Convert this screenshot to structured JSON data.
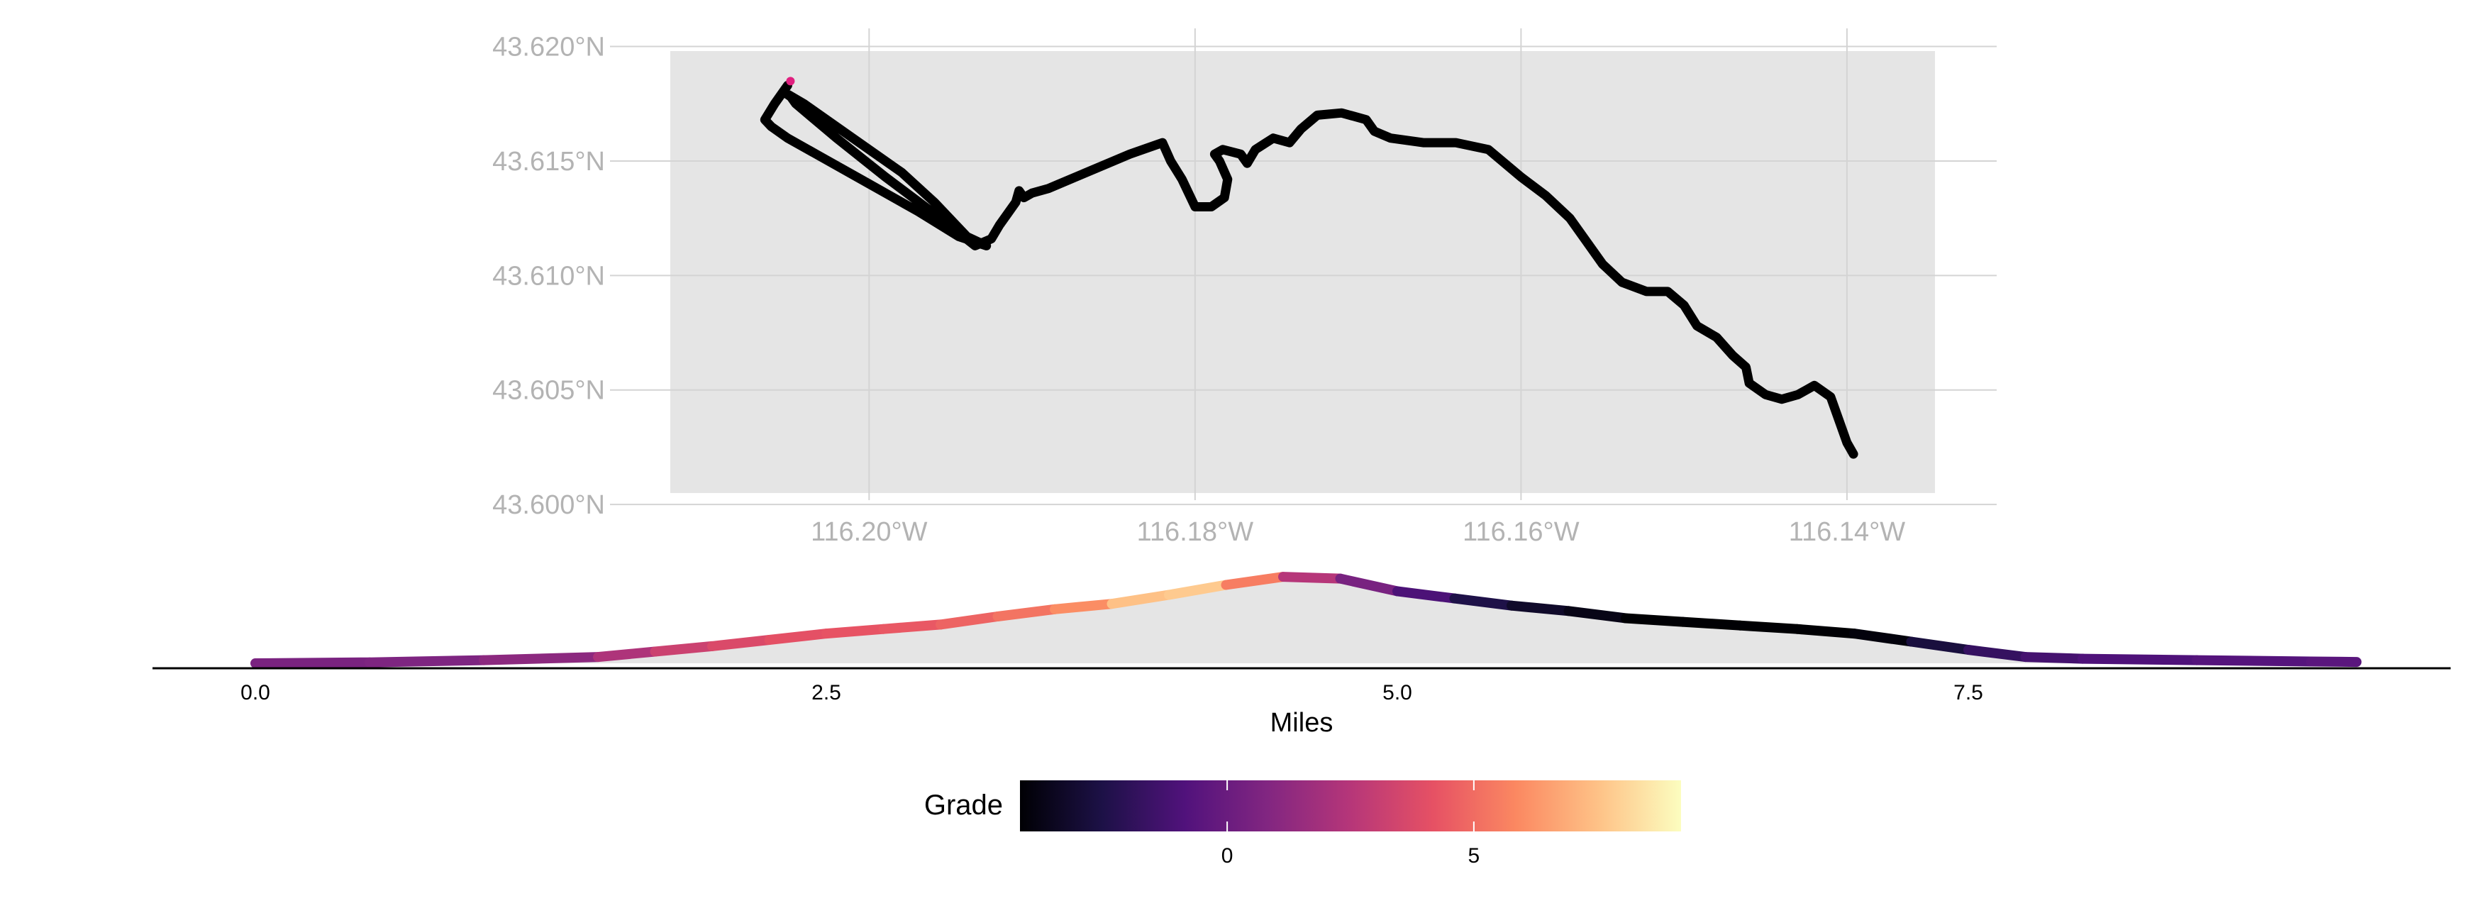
{
  "chart_data": [
    {
      "type": "line",
      "title": "",
      "xlabel": "",
      "ylabel": "",
      "x_ticks": [
        "116.20°W",
        "116.18°W",
        "116.16°W",
        "116.14°W"
      ],
      "x_tick_values": [
        -116.2,
        -116.18,
        -116.16,
        -116.14
      ],
      "y_ticks": [
        "43.600°N",
        "43.605°N",
        "43.610°N",
        "43.615°N",
        "43.620°N"
      ],
      "y_tick_values": [
        43.6,
        43.605,
        43.61,
        43.615,
        43.62
      ],
      "xlim": [
        -116.2122,
        -116.1346
      ],
      "ylim": [
        43.6005,
        43.6198
      ],
      "grid": true,
      "series": [
        {
          "x": [
            -116.205,
            -116.2058,
            -116.2064,
            -116.206,
            -116.205,
            -116.203,
            -116.2,
            -116.197,
            -116.1945,
            -116.1928,
            -116.194,
            -116.196,
            -116.198,
            -116.201,
            -116.204,
            -116.2052,
            -116.2048,
            -116.2045,
            -116.204,
            -116.202,
            -116.199,
            -116.196,
            -116.1935,
            -116.1925,
            -116.192,
            -116.1915,
            -116.191,
            -116.1908,
            -116.1905,
            -116.19,
            -116.189,
            -116.186,
            -116.184,
            -116.182,
            -116.1815,
            -116.1808,
            -116.18,
            -116.179,
            -116.1782,
            -116.178,
            -116.1785,
            -116.1788,
            -116.1783,
            -116.1772,
            -116.1768,
            -116.1763,
            -116.1752,
            -116.1742,
            -116.1735,
            -116.1725,
            -116.171,
            -116.1695,
            -116.169,
            -116.168,
            -116.166,
            -116.164,
            -116.162,
            -116.16,
            -116.1585,
            -116.157,
            -116.156,
            -116.155,
            -116.1538,
            -116.1523,
            -116.151,
            -116.15,
            -116.1492,
            -116.148,
            -116.147,
            -116.1462,
            -116.146,
            -116.145,
            -116.144,
            -116.143,
            -116.142,
            -116.141,
            -116.1405,
            -116.14,
            -116.1396
          ],
          "y": [
            43.6183,
            43.6175,
            43.6168,
            43.6165,
            43.616,
            43.6152,
            43.614,
            43.6128,
            43.6117,
            43.6113,
            43.6117,
            43.6132,
            43.6145,
            43.616,
            43.6175,
            43.618,
            43.6178,
            43.6175,
            43.6172,
            43.616,
            43.6143,
            43.6127,
            43.6113,
            43.6116,
            43.6122,
            43.6127,
            43.6132,
            43.6137,
            43.6134,
            43.6136,
            43.6138,
            43.6147,
            43.6153,
            43.6158,
            43.615,
            43.6142,
            43.613,
            43.613,
            43.6134,
            43.6142,
            43.615,
            43.6153,
            43.6155,
            43.6153,
            43.6149,
            43.6155,
            43.616,
            43.6158,
            43.6164,
            43.617,
            43.6171,
            43.6168,
            43.6163,
            43.616,
            43.6158,
            43.6158,
            43.6155,
            43.6143,
            43.6135,
            43.6125,
            43.6115,
            43.6105,
            43.6097,
            43.6093,
            43.6093,
            43.6087,
            43.6078,
            43.6073,
            43.6065,
            43.606,
            43.6053,
            43.6048,
            43.6046,
            43.6048,
            43.6052,
            43.6047,
            43.6037,
            43.6027,
            43.6022
          ]
        }
      ],
      "start_marker_color": "#e0207f"
    },
    {
      "type": "area",
      "title": "",
      "xlabel": "Miles",
      "ylabel": "",
      "x_ticks": [
        "0.0",
        "2.5",
        "5.0",
        "7.5"
      ],
      "x_tick_values": [
        0.0,
        2.5,
        5.0,
        7.5
      ],
      "xlim": [
        -0.45,
        9.6
      ],
      "ylim": [
        0,
        1
      ],
      "grid": false,
      "series": [
        {
          "x": [
            0.0,
            0.5,
            1.0,
            1.5,
            1.75,
            2.0,
            2.25,
            2.5,
            2.75,
            3.0,
            3.25,
            3.5,
            3.75,
            4.0,
            4.25,
            4.5,
            4.75,
            5.0,
            5.25,
            5.5,
            5.75,
            6.0,
            6.25,
            6.5,
            6.75,
            7.0,
            7.25,
            7.5,
            7.75,
            8.0,
            8.5,
            9.0,
            9.2
          ],
          "elevation_relative": [
            0.0,
            0.01,
            0.035,
            0.07,
            0.13,
            0.19,
            0.26,
            0.33,
            0.38,
            0.43,
            0.52,
            0.6,
            0.66,
            0.76,
            0.87,
            0.96,
            0.94,
            0.8,
            0.72,
            0.64,
            0.58,
            0.5,
            0.46,
            0.42,
            0.38,
            0.33,
            0.24,
            0.15,
            0.07,
            0.05,
            0.035,
            0.02,
            0.015
          ],
          "grade": [
            0.5,
            0.6,
            0.8,
            1.5,
            3.0,
            3.5,
            4.0,
            4.2,
            4.3,
            4.5,
            5.0,
            5.5,
            6.5,
            8.5,
            7.0,
            4.0,
            1.0,
            0.0,
            -2.0,
            -3.0,
            -3.5,
            -4.0,
            -4.5,
            -4.8,
            -4.8,
            -4.5,
            -3.5,
            -2.0,
            -1.5,
            -1.0,
            -0.8,
            -0.6,
            -0.5
          ]
        }
      ]
    }
  ],
  "legend": {
    "title": "Grade",
    "ticks": [
      "0",
      "5"
    ],
    "tick_values": [
      0,
      5
    ],
    "range": [
      -4.2,
      9.2
    ],
    "palette": [
      "#000004",
      "#1d1147",
      "#51127c",
      "#822681",
      "#b63679",
      "#e65164",
      "#fb8861",
      "#fec287",
      "#fcfdbf"
    ]
  },
  "colors": {
    "map_panel": "#e5e5e5",
    "route": "#000000",
    "grid": "#d4d4d4",
    "map_tick_text": "#b3b3b3",
    "profile_fill": "#e5e5e5",
    "axis_line": "#000000",
    "text": "#000000"
  }
}
